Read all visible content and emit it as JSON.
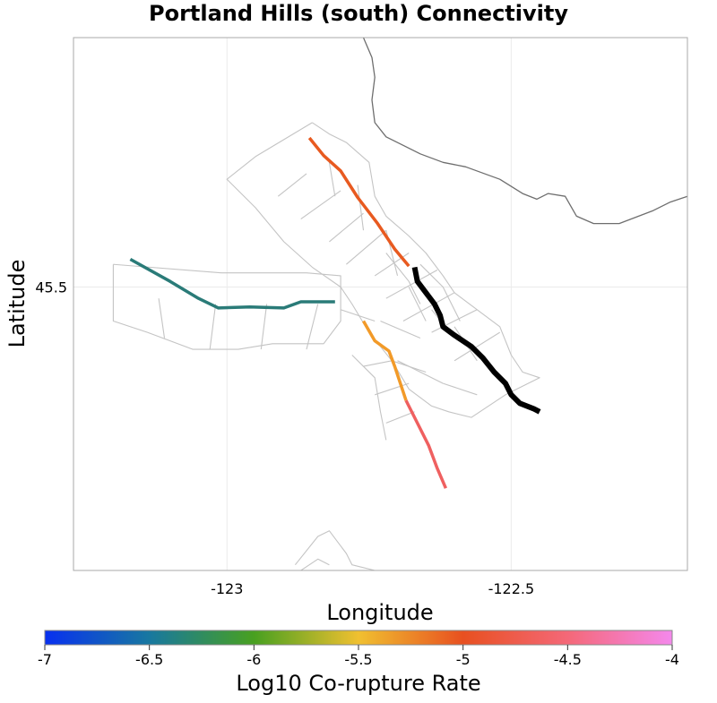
{
  "colors": {
    "background": "#ffffff",
    "panel_border": "#aaaaaa",
    "grid": "#ebebeb",
    "section_outline": "#c4c4c4",
    "coastline": "#6e6e6e",
    "target_fault": "#000000"
  },
  "chart_data": {
    "type": "map",
    "title": "Portland Hills (south) Connectivity",
    "xlabel": "Longitude",
    "ylabel": "Latitude",
    "xlim": [
      -123.27,
      -122.19
    ],
    "ylim": [
      45.0,
      45.94
    ],
    "x_ticks": [
      {
        "value": -123,
        "label": "-123"
      },
      {
        "value": -122.5,
        "label": "-122.5"
      }
    ],
    "y_ticks": [
      {
        "value": 45.5,
        "label": "45.5"
      }
    ],
    "grid": true,
    "colorbar": {
      "label": "Log10 Co-rupture Rate",
      "min": -7,
      "max": -4,
      "ticks": [
        {
          "value": -7,
          "label": "-7"
        },
        {
          "value": -6.5,
          "label": "-6.5"
        },
        {
          "value": -6,
          "label": "-6"
        },
        {
          "value": -5.5,
          "label": "-5.5"
        },
        {
          "value": -5,
          "label": "-5"
        },
        {
          "value": -4.5,
          "label": "-4.5"
        },
        {
          "value": -4,
          "label": "-4"
        }
      ],
      "stops": [
        "#0830f0",
        "#1878a0",
        "#48a020",
        "#f0c030",
        "#e85020",
        "#f46878",
        "#f488ec"
      ]
    },
    "coastline": [
      [
        -122.76,
        45.94
      ],
      [
        -122.745,
        45.905
      ],
      [
        -122.74,
        45.87
      ],
      [
        -122.745,
        45.83
      ],
      [
        -122.74,
        45.79
      ],
      [
        -122.72,
        45.765
      ],
      [
        -122.69,
        45.75
      ],
      [
        -122.66,
        45.735
      ],
      [
        -122.62,
        45.72
      ],
      [
        -122.58,
        45.712
      ],
      [
        -122.52,
        45.69
      ],
      [
        -122.48,
        45.665
      ],
      [
        -122.455,
        45.655
      ],
      [
        -122.435,
        45.665
      ],
      [
        -122.405,
        45.66
      ],
      [
        -122.385,
        45.625
      ],
      [
        -122.355,
        45.612
      ],
      [
        -122.31,
        45.612
      ],
      [
        -122.25,
        45.635
      ],
      [
        -122.22,
        45.65
      ],
      [
        -122.19,
        45.66
      ]
    ],
    "outlines": [
      [
        [
          -123.2,
          45.54
        ],
        [
          -123.01,
          45.525
        ],
        [
          -122.86,
          45.525
        ],
        [
          -122.8,
          45.52
        ],
        [
          -122.8,
          45.44
        ],
        [
          -122.83,
          45.4
        ],
        [
          -122.92,
          45.4
        ],
        [
          -122.98,
          45.39
        ],
        [
          -123.06,
          45.39
        ],
        [
          -123.14,
          45.42
        ],
        [
          -123.2,
          45.44
        ],
        [
          -123.2,
          45.54
        ]
      ],
      [
        [
          -123.12,
          45.48
        ],
        [
          -123.11,
          45.41
        ]
      ],
      [
        [
          -123.02,
          45.47
        ],
        [
          -123.03,
          45.39
        ]
      ],
      [
        [
          -122.93,
          45.47
        ],
        [
          -122.94,
          45.39
        ]
      ],
      [
        [
          -122.84,
          45.47
        ],
        [
          -122.86,
          45.39
        ]
      ],
      [
        [
          -122.85,
          45.79
        ],
        [
          -122.82,
          45.77
        ],
        [
          -122.79,
          45.755
        ],
        [
          -122.75,
          45.72
        ],
        [
          -122.74,
          45.66
        ],
        [
          -122.72,
          45.625
        ],
        [
          -122.68,
          45.59
        ],
        [
          -122.65,
          45.56
        ],
        [
          -122.62,
          45.52
        ],
        [
          -122.6,
          45.49
        ],
        [
          -122.56,
          45.46
        ],
        [
          -122.52,
          45.43
        ],
        [
          -122.5,
          45.38
        ],
        [
          -122.48,
          45.35
        ],
        [
          -122.45,
          45.34
        ],
        [
          -122.51,
          45.31
        ],
        [
          -122.57,
          45.27
        ],
        [
          -122.61,
          45.28
        ],
        [
          -122.64,
          45.29
        ],
        [
          -122.68,
          45.32
        ],
        [
          -122.71,
          45.37
        ],
        [
          -122.75,
          45.42
        ],
        [
          -122.78,
          45.47
        ],
        [
          -122.8,
          45.5
        ],
        [
          -122.85,
          45.535
        ],
        [
          -122.9,
          45.58
        ],
        [
          -122.95,
          45.64
        ],
        [
          -123.0,
          45.69
        ],
        [
          -122.95,
          45.73
        ],
        [
          -122.9,
          45.76
        ],
        [
          -122.85,
          45.79
        ]
      ],
      [
        [
          -122.91,
          45.66
        ],
        [
          -122.86,
          45.7
        ]
      ],
      [
        [
          -122.87,
          45.62
        ],
        [
          -122.8,
          45.67
        ]
      ],
      [
        [
          -122.82,
          45.58
        ],
        [
          -122.76,
          45.63
        ]
      ],
      [
        [
          -122.79,
          45.54
        ],
        [
          -122.72,
          45.6
        ]
      ],
      [
        [
          -122.74,
          45.52
        ],
        [
          -122.68,
          45.56
        ]
      ],
      [
        [
          -122.72,
          45.48
        ],
        [
          -122.63,
          45.53
        ]
      ],
      [
        [
          -122.69,
          45.44
        ],
        [
          -122.6,
          45.49
        ]
      ],
      [
        [
          -122.64,
          45.42
        ],
        [
          -122.56,
          45.46
        ]
      ],
      [
        [
          -122.6,
          45.37
        ],
        [
          -122.52,
          45.42
        ]
      ],
      [
        [
          -122.82,
          45.72
        ],
        [
          -122.81,
          45.66
        ]
      ],
      [
        [
          -122.77,
          45.68
        ],
        [
          -122.76,
          45.6
        ]
      ],
      [
        [
          -122.72,
          45.6
        ],
        [
          -122.7,
          45.52
        ]
      ],
      [
        [
          -122.68,
          45.5
        ],
        [
          -122.65,
          45.44
        ]
      ],
      [
        [
          -122.64,
          45.46
        ],
        [
          -122.6,
          45.41
        ]
      ],
      [
        [
          -122.6,
          45.43
        ],
        [
          -122.56,
          45.37
        ]
      ],
      [
        [
          -122.66,
          45.54
        ],
        [
          -122.62,
          45.5
        ],
        [
          -122.59,
          45.44
        ]
      ],
      [
        [
          -122.72,
          45.56
        ],
        [
          -122.68,
          45.51
        ],
        [
          -122.66,
          45.47
        ]
      ],
      [
        [
          -122.62,
          45.33
        ],
        [
          -122.56,
          45.31
        ]
      ],
      [
        [
          -122.7,
          45.37
        ],
        [
          -122.62,
          45.33
        ]
      ],
      [
        [
          -122.73,
          45.44
        ],
        [
          -122.66,
          45.41
        ]
      ],
      [
        [
          -122.8,
          45.46
        ],
        [
          -122.74,
          45.44
        ]
      ],
      [
        [
          -122.76,
          45.36
        ],
        [
          -122.71,
          45.37
        ],
        [
          -122.65,
          45.35
        ]
      ],
      [
        [
          -122.74,
          45.31
        ],
        [
          -122.68,
          45.33
        ]
      ],
      [
        [
          -122.72,
          45.26
        ],
        [
          -122.67,
          45.28
        ]
      ],
      [
        [
          -122.78,
          45.38
        ],
        [
          -122.74,
          45.34
        ],
        [
          -122.73,
          45.28
        ],
        [
          -122.72,
          45.23
        ]
      ],
      [
        [
          -122.88,
          45.01
        ],
        [
          -122.84,
          45.06
        ],
        [
          -122.82,
          45.07
        ],
        [
          -122.79,
          45.03
        ],
        [
          -122.78,
          45.01
        ],
        [
          -122.74,
          45.0
        ]
      ],
      [
        [
          -122.87,
          45.0
        ],
        [
          -122.84,
          45.02
        ],
        [
          -122.82,
          45.01
        ]
      ]
    ],
    "ruptures": [
      {
        "name": "target-section",
        "log10_rate": null,
        "color": "#000000",
        "width": 6,
        "points": [
          [
            -122.67,
            45.535
          ],
          [
            -122.665,
            45.51
          ],
          [
            -122.65,
            45.49
          ],
          [
            -122.635,
            45.47
          ],
          [
            -122.625,
            45.45
          ],
          [
            -122.62,
            45.43
          ],
          [
            -122.6,
            45.415
          ],
          [
            -122.57,
            45.395
          ],
          [
            -122.55,
            45.375
          ],
          [
            -122.53,
            45.35
          ],
          [
            -122.51,
            45.33
          ],
          [
            -122.5,
            45.31
          ],
          [
            -122.485,
            45.295
          ],
          [
            -122.46,
            45.285
          ],
          [
            -122.45,
            45.28
          ]
        ]
      },
      {
        "name": "teal-rupture",
        "log10_rate": -6.5,
        "color": "#2a7b78",
        "width": 3.5,
        "points": [
          [
            -123.17,
            45.549
          ],
          [
            -123.1,
            45.51
          ],
          [
            -123.05,
            45.48
          ],
          [
            -123.015,
            45.463
          ],
          [
            -122.96,
            45.465
          ],
          [
            -122.9,
            45.463
          ],
          [
            -122.87,
            45.474
          ],
          [
            -122.81,
            45.474
          ]
        ]
      },
      {
        "name": "orange-red-rupture",
        "log10_rate": -4.8,
        "color": "#e85a20",
        "width": 3.5,
        "points": [
          [
            -122.855,
            45.763
          ],
          [
            -122.83,
            45.732
          ],
          [
            -122.8,
            45.705
          ],
          [
            -122.77,
            45.658
          ],
          [
            -122.735,
            45.612
          ],
          [
            -122.705,
            45.567
          ],
          [
            -122.68,
            45.537
          ]
        ]
      },
      {
        "name": "orange-rupture",
        "log10_rate": -5.2,
        "color": "#f29a28",
        "width": 3.5,
        "points": [
          [
            -122.76,
            45.44
          ],
          [
            -122.74,
            45.405
          ],
          [
            -122.715,
            45.387
          ],
          [
            -122.705,
            45.36
          ],
          [
            -122.695,
            45.33
          ],
          [
            -122.685,
            45.3
          ]
        ]
      },
      {
        "name": "red-pink-rupture",
        "log10_rate": -4.6,
        "color": "#ef6060",
        "width": 3.5,
        "points": [
          [
            -122.685,
            45.3
          ],
          [
            -122.665,
            45.26
          ],
          [
            -122.645,
            45.22
          ],
          [
            -122.63,
            45.18
          ],
          [
            -122.615,
            45.145
          ]
        ]
      }
    ]
  }
}
